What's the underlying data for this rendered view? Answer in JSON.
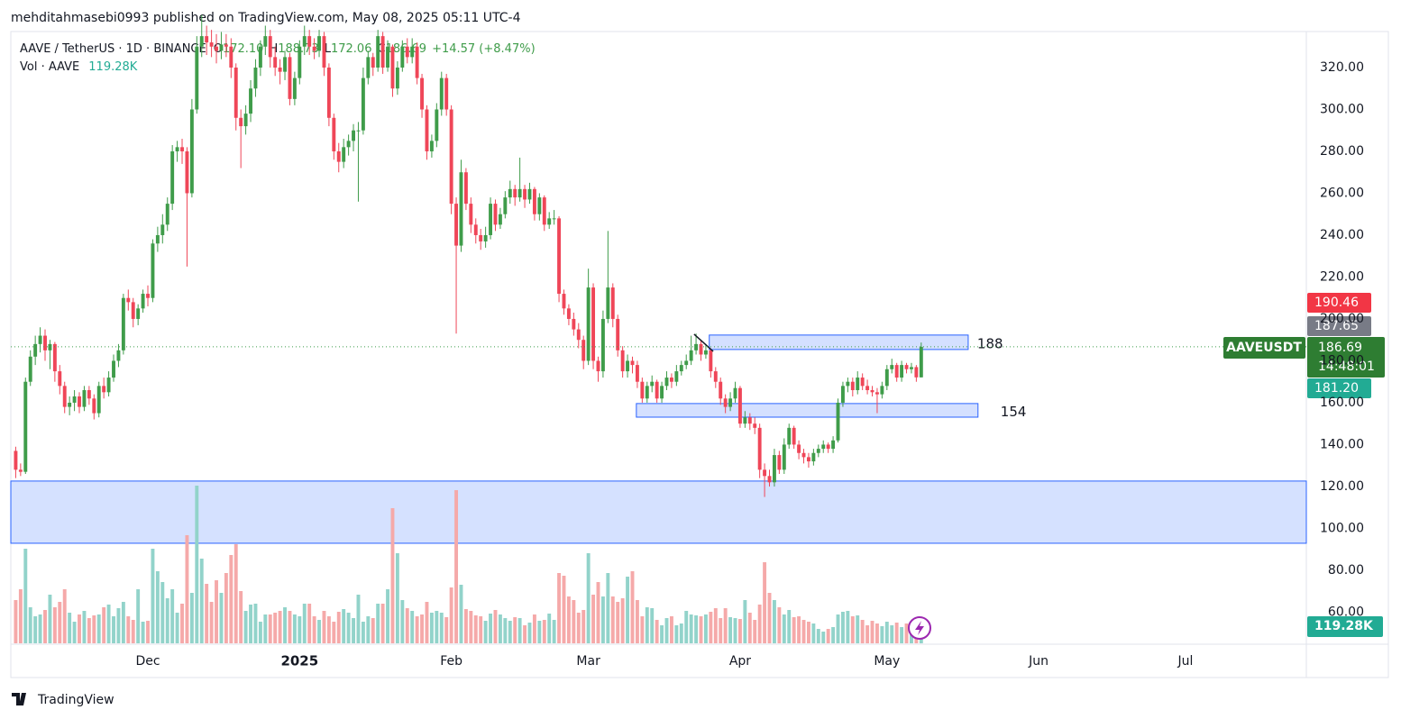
{
  "header": {
    "byline": "mehditahmasebi0993 published on TradingView.com, May 08, 2025 05:11 UTC-4"
  },
  "footer": {
    "brand": "TradingView"
  },
  "chart_data": {
    "type": "candlestick",
    "legend": {
      "symbol": "AAVE / TetherUS · 1D · BINANCE",
      "ohlc": [
        {
          "key": "O",
          "value": "172.10"
        },
        {
          "key": "H",
          "value": "188.73"
        },
        {
          "key": "L",
          "value": "172.06"
        },
        {
          "key": "C",
          "value": "186.69"
        }
      ],
      "change": "+14.57 (+8.47%)",
      "volume_title": "Vol · AAVE",
      "volume_value": "119.28K"
    },
    "price_badges": [
      "190.46",
      "187.65",
      "181.20"
    ],
    "last_price": {
      "symbol": "AAVEUSDT",
      "price": "186.69",
      "countdown": "14:48:01"
    },
    "xlim": [
      -1,
      263.5
    ],
    "xticks": [
      {
        "value": 27,
        "label": "Dec"
      },
      {
        "value": 58,
        "label": "2025"
      },
      {
        "value": 89,
        "label": "Feb"
      },
      {
        "value": 117,
        "label": "Mar"
      },
      {
        "value": 148,
        "label": "Apr"
      },
      {
        "value": 178,
        "label": "May"
      },
      {
        "value": 209,
        "label": "Jun"
      },
      {
        "value": 239,
        "label": "Jul"
      }
    ],
    "ylim": [
      44.7,
      337.2
    ],
    "yticks": [
      {
        "value": 60,
        "label": "60.00"
      },
      {
        "value": 80,
        "label": "80.00"
      },
      {
        "value": 100,
        "label": "100.00"
      },
      {
        "value": 120,
        "label": "120.00"
      },
      {
        "value": 140,
        "label": "140.00"
      },
      {
        "value": 160,
        "label": "160.00"
      },
      {
        "value": 180,
        "label": "180.00"
      },
      {
        "value": 200,
        "label": "200.00"
      },
      {
        "value": 220,
        "label": "220.00"
      },
      {
        "value": 240,
        "label": "240.00"
      },
      {
        "value": 260,
        "label": "260.00"
      },
      {
        "value": 280,
        "label": "280.00"
      },
      {
        "value": 300,
        "label": "300.00"
      },
      {
        "value": 320,
        "label": "320.00"
      }
    ],
    "grid": false,
    "up_color": "#3f9c4a",
    "down_color": "#ef4658",
    "volume_up_color": "#92d3ca",
    "volume_down_color": "#f5a9a9",
    "candles": [
      [
        137,
        139,
        124,
        128
      ],
      [
        128,
        131,
        125,
        127
      ],
      [
        127,
        172,
        126,
        170
      ],
      [
        170,
        185,
        168,
        182
      ],
      [
        182,
        192,
        178,
        188
      ],
      [
        188,
        196,
        184,
        192
      ],
      [
        192,
        195,
        180,
        185
      ],
      [
        185,
        190,
        176,
        188
      ],
      [
        188,
        189,
        170,
        175
      ],
      [
        175,
        178,
        164,
        168
      ],
      [
        168,
        170,
        155,
        158
      ],
      [
        158,
        163,
        154,
        160
      ],
      [
        160,
        166,
        156,
        163
      ],
      [
        163,
        165,
        155,
        158
      ],
      [
        158,
        168,
        156,
        166
      ],
      [
        166,
        168,
        159,
        162
      ],
      [
        162,
        164,
        152,
        155
      ],
      [
        155,
        170,
        153,
        168
      ],
      [
        168,
        172,
        162,
        165
      ],
      [
        165,
        175,
        163,
        172
      ],
      [
        172,
        183,
        170,
        180
      ],
      [
        180,
        188,
        177,
        185
      ],
      [
        185,
        212,
        183,
        210
      ],
      [
        210,
        214,
        204,
        208
      ],
      [
        208,
        210,
        196,
        200
      ],
      [
        200,
        207,
        197,
        205
      ],
      [
        205,
        214,
        203,
        212
      ],
      [
        212,
        216,
        206,
        210
      ],
      [
        210,
        238,
        208,
        236
      ],
      [
        236,
        244,
        232,
        240
      ],
      [
        240,
        250,
        236,
        245
      ],
      [
        245,
        258,
        242,
        255
      ],
      [
        255,
        283,
        252,
        280
      ],
      [
        280,
        285,
        275,
        282
      ],
      [
        282,
        286,
        274,
        280
      ],
      [
        280,
        282,
        225,
        260
      ],
      [
        260,
        305,
        258,
        300
      ],
      [
        300,
        335,
        298,
        330
      ],
      [
        330,
        345,
        325,
        335
      ],
      [
        335,
        340,
        326,
        332
      ],
      [
        332,
        338,
        325,
        330
      ],
      [
        330,
        336,
        322,
        328
      ],
      [
        328,
        337,
        324,
        331
      ],
      [
        331,
        336,
        325,
        330
      ],
      [
        330,
        334,
        315,
        320
      ],
      [
        320,
        322,
        290,
        296
      ],
      [
        296,
        300,
        272,
        292
      ],
      [
        292,
        302,
        288,
        298
      ],
      [
        298,
        314,
        294,
        310
      ],
      [
        310,
        324,
        306,
        320
      ],
      [
        320,
        333,
        316,
        330
      ],
      [
        330,
        340,
        326,
        335
      ],
      [
        335,
        338,
        320,
        325
      ],
      [
        325,
        330,
        316,
        320
      ],
      [
        320,
        324,
        312,
        318
      ],
      [
        318,
        328,
        314,
        325
      ],
      [
        325,
        327,
        302,
        305
      ],
      [
        305,
        318,
        302,
        315
      ],
      [
        315,
        333,
        312,
        330
      ],
      [
        330,
        340,
        326,
        335
      ],
      [
        335,
        338,
        326,
        330
      ],
      [
        330,
        334,
        324,
        328
      ],
      [
        328,
        338,
        325,
        335
      ],
      [
        335,
        337,
        316,
        320
      ],
      [
        320,
        322,
        292,
        296
      ],
      [
        296,
        298,
        276,
        280
      ],
      [
        280,
        284,
        270,
        275
      ],
      [
        275,
        286,
        272,
        282
      ],
      [
        282,
        288,
        278,
        285
      ],
      [
        285,
        293,
        280,
        290
      ],
      [
        290,
        294,
        256,
        290
      ],
      [
        290,
        320,
        288,
        315
      ],
      [
        315,
        328,
        312,
        325
      ],
      [
        325,
        327,
        316,
        320
      ],
      [
        320,
        338,
        318,
        335
      ],
      [
        335,
        337,
        317,
        320
      ],
      [
        320,
        333,
        318,
        330
      ],
      [
        330,
        331,
        306,
        310
      ],
      [
        310,
        323,
        307,
        320
      ],
      [
        320,
        333,
        318,
        330
      ],
      [
        330,
        334,
        322,
        325
      ],
      [
        325,
        334,
        322,
        330
      ],
      [
        330,
        332,
        312,
        315
      ],
      [
        315,
        317,
        296,
        300
      ],
      [
        300,
        302,
        276,
        280
      ],
      [
        280,
        288,
        277,
        285
      ],
      [
        285,
        303,
        282,
        300
      ],
      [
        300,
        318,
        297,
        315
      ],
      [
        315,
        317,
        297,
        300
      ],
      [
        300,
        302,
        250,
        255
      ],
      [
        255,
        258,
        193,
        235
      ],
      [
        235,
        276,
        232,
        270
      ],
      [
        270,
        272,
        252,
        255
      ],
      [
        255,
        258,
        241,
        245
      ],
      [
        245,
        248,
        236,
        240
      ],
      [
        240,
        243,
        233,
        237
      ],
      [
        237,
        244,
        234,
        240
      ],
      [
        240,
        258,
        238,
        255
      ],
      [
        255,
        257,
        242,
        245
      ],
      [
        245,
        253,
        243,
        250
      ],
      [
        250,
        261,
        248,
        258
      ],
      [
        258,
        266,
        255,
        262
      ],
      [
        262,
        264,
        254,
        258
      ],
      [
        258,
        277,
        256,
        262
      ],
      [
        262,
        264,
        253,
        257
      ],
      [
        257,
        265,
        255,
        262
      ],
      [
        262,
        263,
        247,
        250
      ],
      [
        250,
        260,
        247,
        258
      ],
      [
        258,
        259,
        242,
        245
      ],
      [
        245,
        251,
        243,
        248
      ],
      [
        248,
        252,
        245,
        248
      ],
      [
        248,
        249,
        208,
        212
      ],
      [
        212,
        214,
        202,
        205
      ],
      [
        205,
        207,
        197,
        200
      ],
      [
        200,
        203,
        192,
        195
      ],
      [
        195,
        198,
        186,
        190
      ],
      [
        190,
        192,
        176,
        180
      ],
      [
        180,
        224,
        178,
        215
      ],
      [
        215,
        217,
        176,
        180
      ],
      [
        180,
        182,
        170,
        175
      ],
      [
        175,
        204,
        172,
        200
      ],
      [
        200,
        242,
        198,
        215
      ],
      [
        215,
        217,
        196,
        200
      ],
      [
        200,
        202,
        182,
        185
      ],
      [
        185,
        187,
        172,
        175
      ],
      [
        175,
        183,
        172,
        180
      ],
      [
        180,
        182,
        174,
        178
      ],
      [
        178,
        180,
        167,
        170
      ],
      [
        170,
        172,
        160,
        162
      ],
      [
        162,
        170,
        160,
        168
      ],
      [
        168,
        173,
        165,
        170
      ],
      [
        170,
        171,
        160,
        162
      ],
      [
        162,
        170,
        160,
        168
      ],
      [
        168,
        175,
        166,
        172
      ],
      [
        172,
        174,
        167,
        170
      ],
      [
        170,
        178,
        168,
        175
      ],
      [
        175,
        180,
        173,
        178
      ],
      [
        178,
        183,
        176,
        180
      ],
      [
        180,
        192,
        178,
        185
      ],
      [
        185,
        193,
        183,
        188
      ],
      [
        188,
        190,
        180,
        183
      ],
      [
        183,
        188,
        181,
        185
      ],
      [
        185,
        186,
        172,
        175
      ],
      [
        175,
        177,
        167,
        170
      ],
      [
        170,
        172,
        159,
        162
      ],
      [
        162,
        164,
        155,
        158
      ],
      [
        158,
        165,
        156,
        162
      ],
      [
        162,
        170,
        160,
        167
      ],
      [
        167,
        168,
        148,
        150
      ],
      [
        150,
        156,
        148,
        153
      ],
      [
        153,
        155,
        147,
        150
      ],
      [
        150,
        153,
        145,
        148
      ],
      [
        148,
        150,
        124,
        128
      ],
      [
        128,
        131,
        115,
        125
      ],
      [
        125,
        128,
        120,
        122
      ],
      [
        122,
        138,
        120,
        135
      ],
      [
        135,
        137,
        126,
        128
      ],
      [
        128,
        143,
        126,
        140
      ],
      [
        140,
        150,
        138,
        148
      ],
      [
        148,
        149,
        138,
        140
      ],
      [
        140,
        142,
        133,
        136
      ],
      [
        136,
        138,
        131,
        134
      ],
      [
        134,
        136,
        129,
        132
      ],
      [
        132,
        138,
        130,
        136
      ],
      [
        136,
        140,
        134,
        138
      ],
      [
        138,
        142,
        136,
        140
      ],
      [
        140,
        141,
        136,
        138
      ],
      [
        138,
        144,
        136,
        142
      ],
      [
        142,
        162,
        141,
        160
      ],
      [
        160,
        170,
        158,
        168
      ],
      [
        168,
        172,
        165,
        170
      ],
      [
        170,
        172,
        163,
        166
      ],
      [
        166,
        175,
        164,
        172
      ],
      [
        172,
        174,
        166,
        168
      ],
      [
        168,
        171,
        164,
        166
      ],
      [
        166,
        168,
        163,
        165
      ],
      [
        165,
        167,
        155,
        164
      ],
      [
        164,
        170,
        162,
        168
      ],
      [
        168,
        178,
        166,
        176
      ],
      [
        176,
        181,
        174,
        178
      ],
      [
        178,
        179,
        170,
        172
      ],
      [
        172,
        180,
        170,
        178
      ],
      [
        178,
        179,
        174,
        176
      ],
      [
        176,
        179,
        174,
        177
      ],
      [
        177,
        178,
        170,
        172.1
      ],
      [
        172.1,
        188.73,
        172.06,
        186.69
      ]
    ],
    "volume": [
      240000,
      300000,
      525000,
      200000,
      150000,
      160000,
      185000,
      270000,
      200000,
      230000,
      300000,
      170000,
      120000,
      160000,
      180000,
      140000,
      155000,
      160000,
      200000,
      215000,
      150000,
      195000,
      230000,
      150000,
      130000,
      300000,
      120000,
      125000,
      525000,
      400000,
      340000,
      250000,
      300000,
      170000,
      220000,
      600000,
      280000,
      875000,
      470000,
      330000,
      230000,
      350000,
      280000,
      390000,
      490000,
      550000,
      290000,
      180000,
      215000,
      220000,
      120000,
      160000,
      160000,
      170000,
      180000,
      200000,
      180000,
      160000,
      150000,
      220000,
      220000,
      150000,
      130000,
      180000,
      150000,
      120000,
      175000,
      190000,
      170000,
      140000,
      270000,
      120000,
      150000,
      140000,
      220000,
      220000,
      300000,
      750000,
      500000,
      240000,
      195000,
      180000,
      150000,
      160000,
      230000,
      170000,
      180000,
      170000,
      145000,
      310000,
      850000,
      325000,
      190000,
      180000,
      155000,
      150000,
      125000,
      165000,
      185000,
      160000,
      140000,
      125000,
      145000,
      140000,
      100000,
      115000,
      160000,
      125000,
      130000,
      165000,
      130000,
      390000,
      375000,
      260000,
      240000,
      170000,
      185000,
      500000,
      270000,
      340000,
      260000,
      390000,
      260000,
      230000,
      250000,
      370000,
      400000,
      240000,
      150000,
      200000,
      195000,
      130000,
      100000,
      140000,
      150000,
      100000,
      110000,
      180000,
      160000,
      155000,
      150000,
      160000,
      175000,
      195000,
      140000,
      195000,
      145000,
      140000,
      135000,
      240000,
      170000,
      130000,
      215000,
      450000,
      280000,
      240000,
      200000,
      160000,
      185000,
      145000,
      150000,
      130000,
      120000,
      110000,
      80000,
      65000,
      80000,
      90000,
      160000,
      175000,
      180000,
      150000,
      155000,
      130000,
      100000,
      125000,
      110000,
      95000,
      120000,
      100000,
      115000,
      90000,
      110000,
      100000,
      120000,
      119280
    ],
    "zones": [
      {
        "x": [
          141.7,
          194.6
        ],
        "y": [
          185.4,
          192.3
        ],
        "label": "188"
      },
      {
        "x": [
          126.8,
          196.6
        ],
        "y": [
          153.1,
          159.6
        ],
        "label": "154"
      },
      {
        "y": [
          92.9,
          122.6
        ]
      }
    ],
    "lines": [
      {
        "x": [
          138.6,
          142.5
        ],
        "y": [
          192.7,
          184.5
        ]
      }
    ]
  }
}
